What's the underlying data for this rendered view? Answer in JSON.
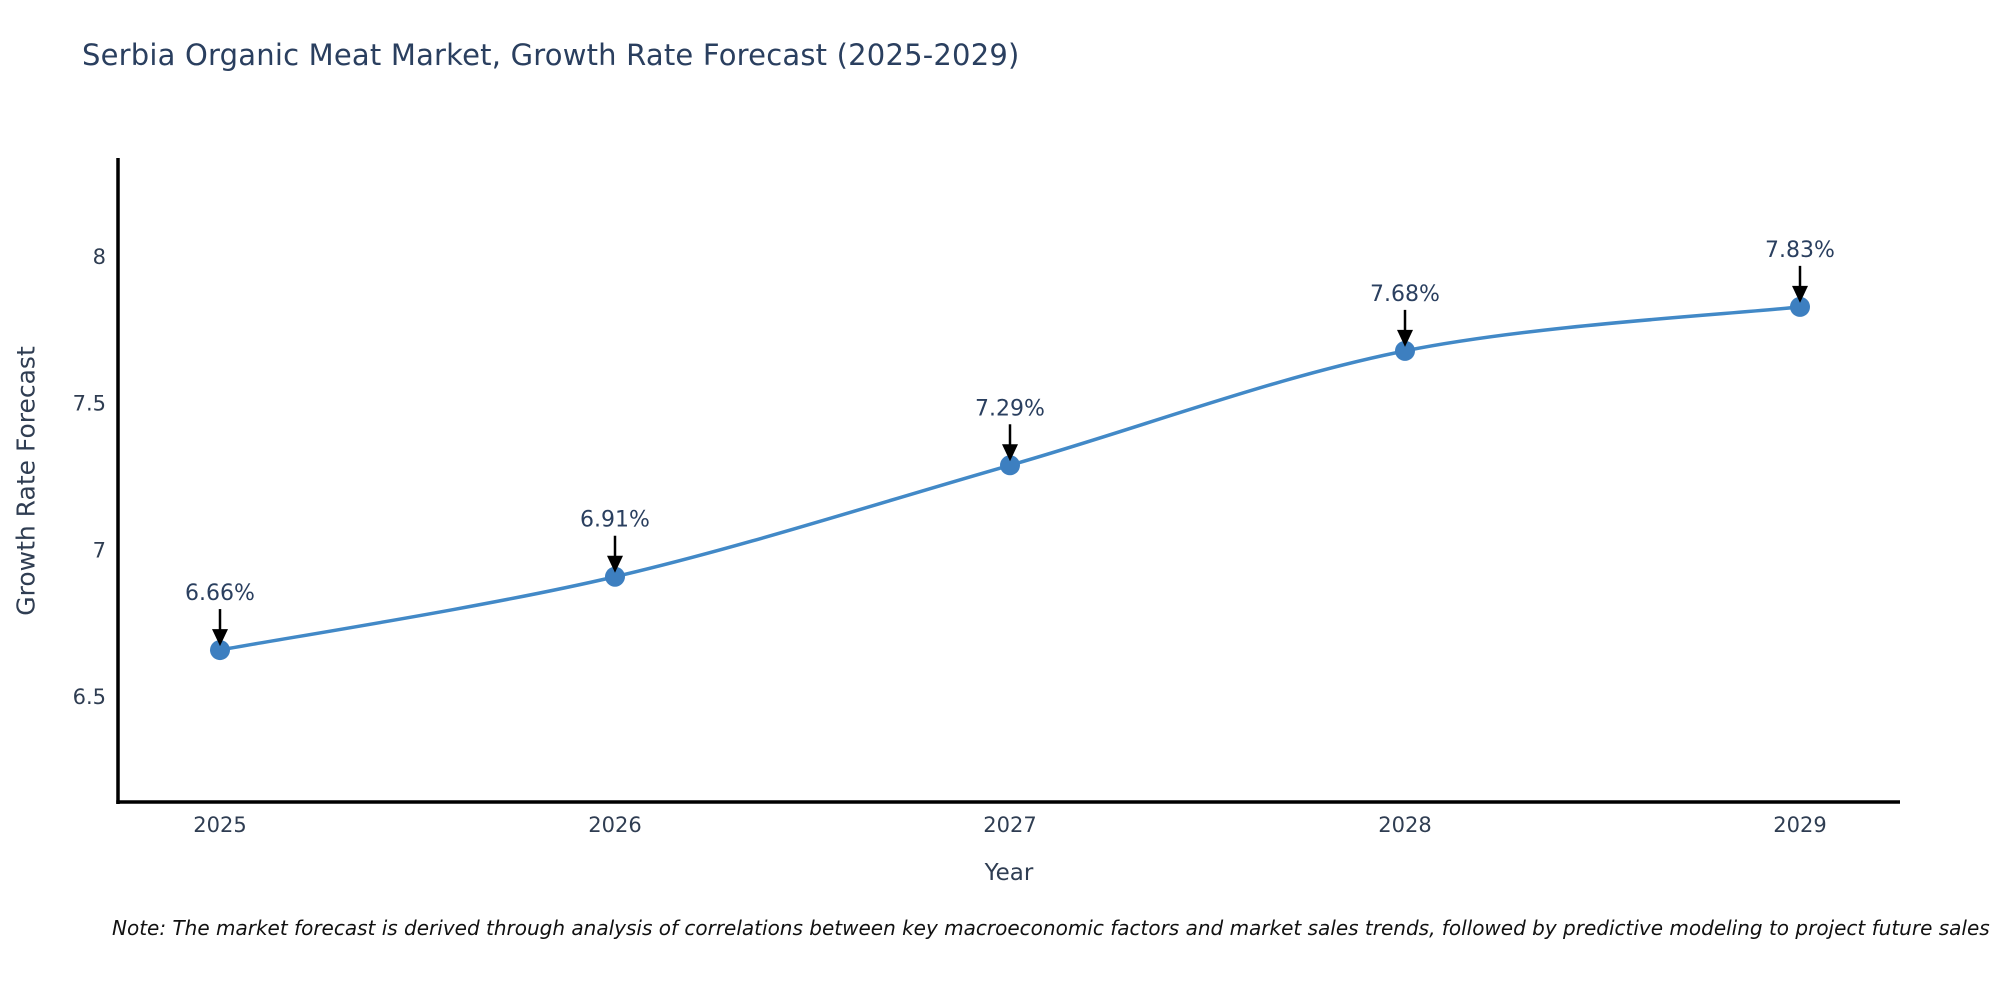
{
  "title": "Serbia Organic Meat Market, Growth Rate Forecast (2025-2029)",
  "note": "Note: The market forecast is derived through analysis of correlations between key macroeconomic factors and market sales trends, followed by predictive modeling to project future sales",
  "chart_data": {
    "type": "line",
    "title": "Serbia Organic Meat Market, Growth Rate Forecast (2025-2029)",
    "xlabel": "Year",
    "ylabel": "Growth Rate Forecast",
    "x": [
      2025,
      2026,
      2027,
      2028,
      2029
    ],
    "y": [
      6.66,
      6.91,
      7.29,
      7.68,
      7.83
    ],
    "point_labels": [
      "6.66%",
      "6.91%",
      "7.29%",
      "7.68%",
      "7.83%"
    ],
    "x_tick_labels": [
      "2025",
      "2026",
      "2027",
      "2028",
      "2029"
    ],
    "y_ticks": [
      6.5,
      7,
      7.5,
      8
    ],
    "y_tick_labels": [
      "6.5",
      "7",
      "7.5",
      "8"
    ],
    "ylim": [
      6.14,
      8.33
    ],
    "grid": false,
    "legend": "none",
    "marker": "circle",
    "annotation_arrows": true,
    "colors": {
      "line": "#4289c7",
      "marker": "#3d7fc0",
      "axis": "#000000",
      "arrow": "#000000",
      "title_text": "#2a3f5f",
      "tick_text": "#2f3d52",
      "label_text": "#2a3f5f"
    }
  }
}
